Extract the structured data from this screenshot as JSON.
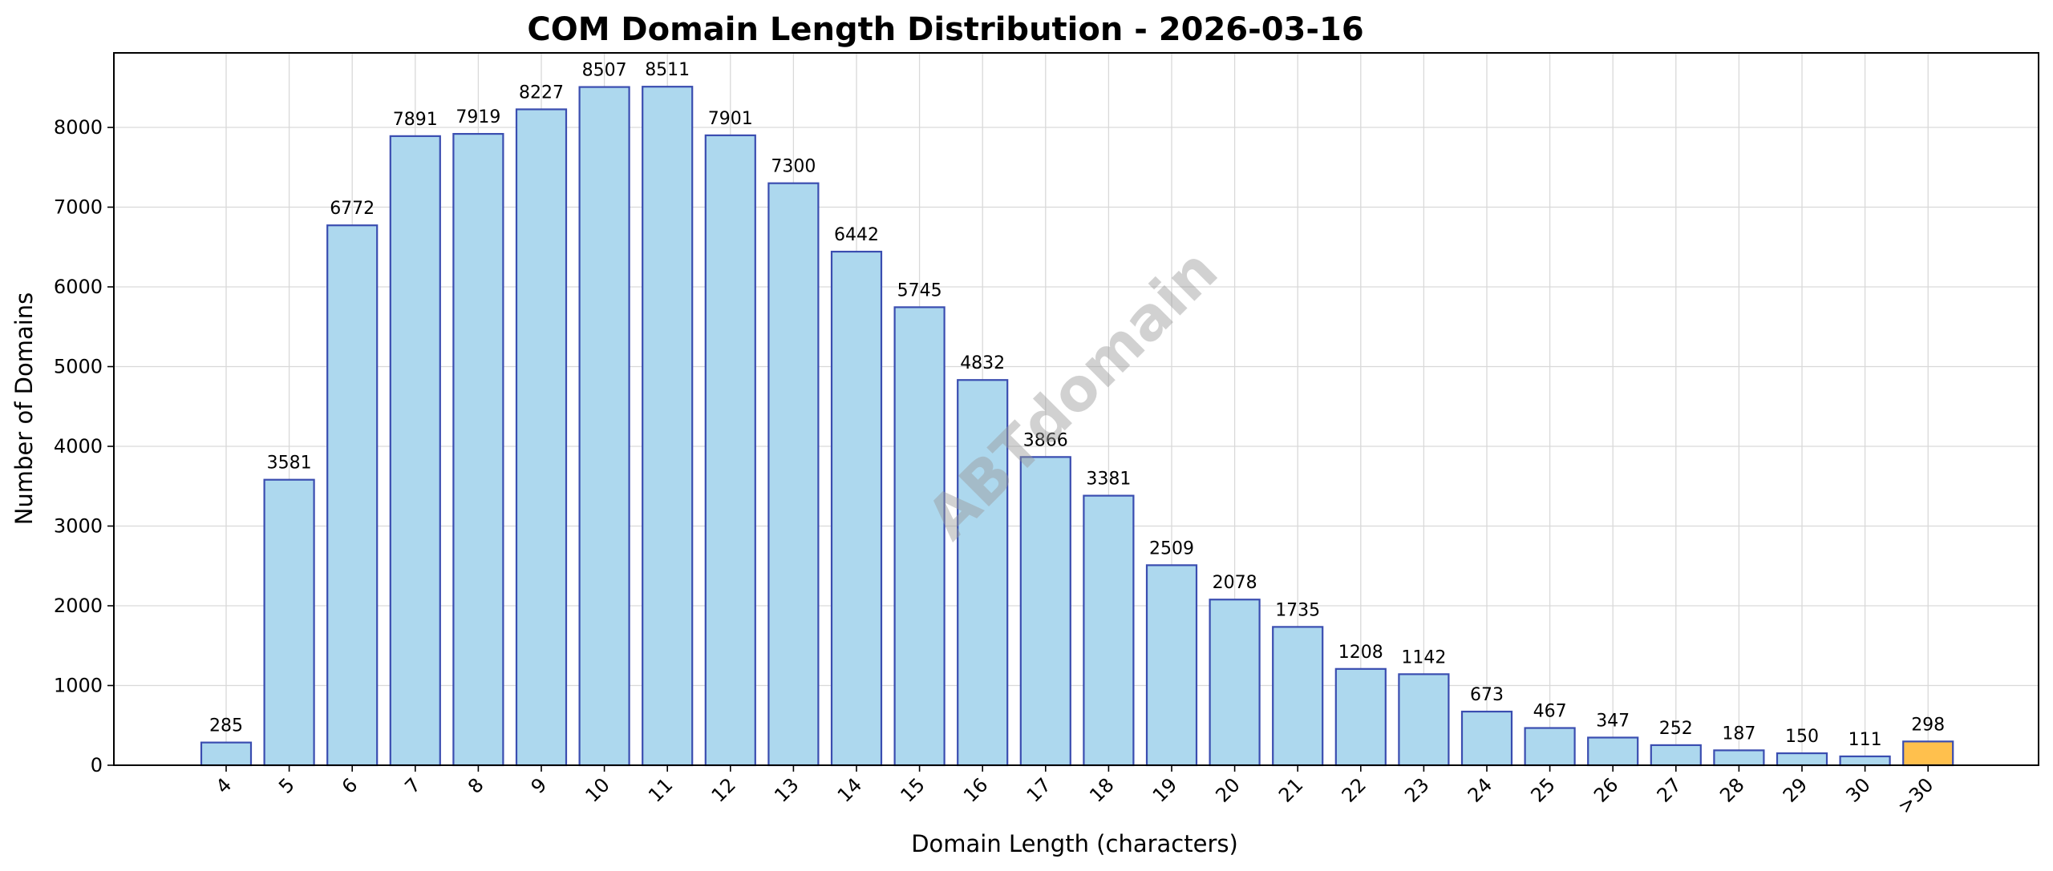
{
  "chart_data": {
    "type": "bar",
    "title": "COM Domain Length Distribution - 2026-03-16",
    "xlabel": "Domain Length (characters)",
    "ylabel": "Number of Domains",
    "categories": [
      "4",
      "5",
      "6",
      "7",
      "8",
      "9",
      "10",
      "11",
      "12",
      "13",
      "14",
      "15",
      "16",
      "17",
      "18",
      "19",
      "20",
      "21",
      "22",
      "23",
      "24",
      "25",
      "26",
      "27",
      "28",
      "29",
      "30",
      ">30"
    ],
    "values": [
      285,
      3581,
      6772,
      7891,
      7919,
      8227,
      8507,
      8511,
      7901,
      7300,
      6442,
      5745,
      4832,
      3866,
      3381,
      2509,
      2078,
      1735,
      1208,
      1142,
      673,
      467,
      347,
      252,
      187,
      150,
      111,
      298
    ],
    "ylim": [
      0,
      8935
    ],
    "yticks": [
      0,
      1000,
      2000,
      3000,
      4000,
      5000,
      6000,
      7000,
      8000
    ],
    "grid": true,
    "colors": {
      "bar_fill": "#add8ee",
      "bar_edge": "#3a4db0",
      "highlight_fill": "#ffc04d",
      "highlight_edge": "#3a4db0"
    },
    "highlight_category": ">30",
    "watermark": "ABTdomain"
  }
}
